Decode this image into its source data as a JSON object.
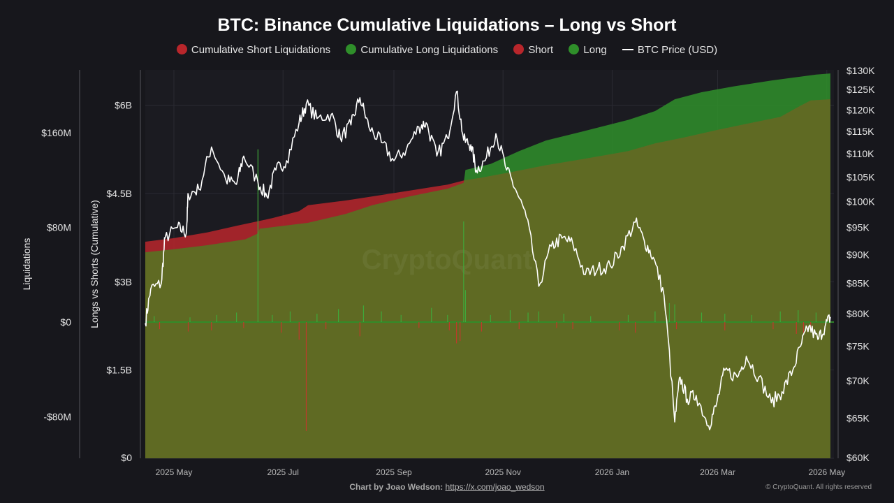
{
  "title": "BTC: Binance Cumulative Liquidations – Long vs Short",
  "legend": [
    {
      "label": "Cumulative Short Liquidations",
      "kind": "dot",
      "color": "#b8262b"
    },
    {
      "label": "Cumulative Long Liquidations",
      "kind": "dot",
      "color": "#2f8f2a"
    },
    {
      "label": "Short",
      "kind": "dot",
      "color": "#b8262b"
    },
    {
      "label": "Long",
      "kind": "dot",
      "color": "#2f8f2a"
    },
    {
      "label": "BTC Price (USD)",
      "kind": "line",
      "color": "#ffffff"
    }
  ],
  "footer": {
    "credit_prefix": "Chart by Joao Wedson:",
    "credit_link": "https://x.com/joao_wedson",
    "copyright": "© CryptoQuant. All rights reserved"
  },
  "colors": {
    "background": "#17171c",
    "plot_background": "#1b1b21",
    "short": "#b8262b",
    "long": "#2f8f2a",
    "overlap": "#5f6a23",
    "price_line": "#ffffff"
  },
  "chart_data": {
    "type": "area",
    "x_axis": {
      "type": "date",
      "range": [
        "2025-04-15",
        "2026-05-05"
      ],
      "ticks": [
        {
          "date": "2025-05-01",
          "label": "2025 May"
        },
        {
          "date": "2025-07-01",
          "label": "2025 Jul"
        },
        {
          "date": "2025-09-01",
          "label": "2025 Sep"
        },
        {
          "date": "2025-11-01",
          "label": "2025 Nov"
        },
        {
          "date": "2026-01-01",
          "label": "2026 Jan"
        },
        {
          "date": "2026-03-01",
          "label": "2026 Mar"
        },
        {
          "date": "2026-05-01",
          "label": "2026 May"
        }
      ]
    },
    "axes": {
      "liquidations": {
        "label": "Liquidations",
        "range": [
          -160000000,
          160000000
        ],
        "ticks": [
          {
            "value": 160000000,
            "label": "$160M"
          },
          {
            "value": 80000000,
            "label": "$80M"
          },
          {
            "value": 0,
            "label": "$0"
          },
          {
            "value": -80000000,
            "label": "-$80M"
          }
        ]
      },
      "cumulative": {
        "label": "Longs vs Shorts (Cumulative)",
        "range": [
          0,
          6600000000
        ],
        "ticks": [
          {
            "value": 6000000000,
            "label": "$6B"
          },
          {
            "value": 4500000000,
            "label": "$4.5B"
          },
          {
            "value": 3000000000,
            "label": "$3B"
          },
          {
            "value": 1500000000,
            "label": "$1.5B"
          },
          {
            "value": 0,
            "label": "$0"
          }
        ],
        "zero_label": "$0"
      },
      "price": {
        "label": "BTC Price (USD)",
        "scale": "log",
        "range": [
          60000,
          130000
        ],
        "ticks": [
          {
            "value": 130000,
            "label": "$130K"
          },
          {
            "value": 125000,
            "label": "$125K"
          },
          {
            "value": 120000,
            "label": "$120K"
          },
          {
            "value": 115000,
            "label": "$115K"
          },
          {
            "value": 110000,
            "label": "$110K"
          },
          {
            "value": 105000,
            "label": "$105K"
          },
          {
            "value": 100000,
            "label": "$100K"
          },
          {
            "value": 95000,
            "label": "$95K"
          },
          {
            "value": 90000,
            "label": "$90K"
          },
          {
            "value": 85000,
            "label": "$85K"
          },
          {
            "value": 80000,
            "label": "$80K"
          },
          {
            "value": 75000,
            "label": "$75K"
          },
          {
            "value": 70000,
            "label": "$70K"
          },
          {
            "value": 65000,
            "label": "$65K"
          },
          {
            "value": 60000,
            "label": "$60K"
          }
        ]
      }
    },
    "series": [
      {
        "name": "Cumulative Short Liquidations",
        "axis": "cumulative",
        "points": [
          [
            "2025-04-15",
            3680000000.0
          ],
          [
            "2025-05-01",
            3740000000.0
          ],
          [
            "2025-05-20",
            3840000000.0
          ],
          [
            "2025-06-05",
            3950000000.0
          ],
          [
            "2025-06-25",
            4080000000.0
          ],
          [
            "2025-07-10",
            4200000000.0
          ],
          [
            "2025-07-15",
            4300000000.0
          ],
          [
            "2025-08-05",
            4380000000.0
          ],
          [
            "2025-08-20",
            4450000000.0
          ],
          [
            "2025-09-10",
            4550000000.0
          ],
          [
            "2025-10-01",
            4650000000.0
          ],
          [
            "2025-10-10",
            4720000000.0
          ],
          [
            "2025-10-20",
            4770000000.0
          ],
          [
            "2025-11-05",
            4860000000.0
          ],
          [
            "2025-11-25",
            4980000000.0
          ],
          [
            "2025-12-15",
            5080000000.0
          ],
          [
            "2026-01-10",
            5220000000.0
          ],
          [
            "2026-01-25",
            5350000000.0
          ],
          [
            "2026-02-10",
            5450000000.0
          ],
          [
            "2026-03-01",
            5580000000.0
          ],
          [
            "2026-03-20",
            5700000000.0
          ],
          [
            "2026-04-05",
            5800000000.0
          ],
          [
            "2026-04-15",
            5970000000.0
          ],
          [
            "2026-04-22",
            6080000000.0
          ],
          [
            "2026-05-03",
            6100000000.0
          ]
        ]
      },
      {
        "name": "Cumulative Long Liquidations",
        "axis": "cumulative",
        "points": [
          [
            "2025-04-15",
            3500000000.0
          ],
          [
            "2025-05-01",
            3550000000.0
          ],
          [
            "2025-05-20",
            3620000000.0
          ],
          [
            "2025-06-10",
            3720000000.0
          ],
          [
            "2025-06-17",
            3820000000.0
          ],
          [
            "2025-06-18",
            3900000000.0
          ],
          [
            "2025-07-15",
            4000000000.0
          ],
          [
            "2025-08-05",
            4150000000.0
          ],
          [
            "2025-08-20",
            4300000000.0
          ],
          [
            "2025-09-10",
            4450000000.0
          ],
          [
            "2025-10-01",
            4580000000.0
          ],
          [
            "2025-10-10",
            4680000000.0
          ],
          [
            "2025-10-11",
            4900000000.0
          ],
          [
            "2025-10-25",
            5000000000.0
          ],
          [
            "2025-11-10",
            5220000000.0
          ],
          [
            "2025-11-25",
            5400000000.0
          ],
          [
            "2025-12-15",
            5550000000.0
          ],
          [
            "2026-01-10",
            5750000000.0
          ],
          [
            "2026-01-25",
            5900000000.0
          ],
          [
            "2026-02-05",
            6100000000.0
          ],
          [
            "2026-02-20",
            6220000000.0
          ],
          [
            "2026-03-10",
            6320000000.0
          ],
          [
            "2026-03-31",
            6420000000.0
          ],
          [
            "2026-04-15",
            6480000000.0
          ],
          [
            "2026-04-25",
            6520000000.0
          ],
          [
            "2026-05-03",
            6540000000.0
          ]
        ]
      },
      {
        "name": "Long",
        "axis": "liquidations",
        "values_usd_m": [
          [
            "2025-04-20",
            5
          ],
          [
            "2025-05-10",
            4
          ],
          [
            "2025-05-25",
            6
          ],
          [
            "2025-06-05",
            8
          ],
          [
            "2025-06-17",
            146
          ],
          [
            "2025-06-25",
            6
          ],
          [
            "2025-07-05",
            9
          ],
          [
            "2025-07-20",
            7
          ],
          [
            "2025-08-01",
            11
          ],
          [
            "2025-08-15",
            14
          ],
          [
            "2025-08-25",
            9
          ],
          [
            "2025-09-05",
            6
          ],
          [
            "2025-09-22",
            12
          ],
          [
            "2025-10-01",
            6
          ],
          [
            "2025-10-10",
            85
          ],
          [
            "2025-10-11",
            27
          ],
          [
            "2025-10-25",
            6
          ],
          [
            "2025-11-05",
            10
          ],
          [
            "2025-11-15",
            8
          ],
          [
            "2025-11-21",
            9
          ],
          [
            "2025-12-05",
            7
          ],
          [
            "2025-12-20",
            5
          ],
          [
            "2026-01-10",
            6
          ],
          [
            "2026-01-25",
            9
          ],
          [
            "2026-02-02",
            16
          ],
          [
            "2026-02-05",
            15
          ],
          [
            "2026-02-20",
            8
          ],
          [
            "2026-03-05",
            7
          ],
          [
            "2026-03-20",
            6
          ],
          [
            "2026-04-05",
            9
          ],
          [
            "2026-04-15",
            10
          ],
          [
            "2026-04-25",
            8
          ]
        ]
      },
      {
        "name": "Short",
        "axis": "liquidations",
        "values_usd_m": [
          [
            "2025-04-23",
            -6
          ],
          [
            "2025-05-09",
            -8
          ],
          [
            "2025-05-22",
            -7
          ],
          [
            "2025-06-09",
            -5
          ],
          [
            "2025-06-30",
            -9
          ],
          [
            "2025-07-10",
            -15
          ],
          [
            "2025-07-14",
            -92
          ],
          [
            "2025-07-25",
            -6
          ],
          [
            "2025-08-13",
            -12
          ],
          [
            "2025-09-15",
            -5
          ],
          [
            "2025-10-02",
            -7
          ],
          [
            "2025-10-06",
            -18
          ],
          [
            "2025-10-08",
            -16
          ],
          [
            "2025-10-20",
            -8
          ],
          [
            "2025-11-10",
            -6
          ],
          [
            "2025-12-01",
            -5
          ],
          [
            "2025-12-10",
            -6
          ],
          [
            "2026-01-05",
            -7
          ],
          [
            "2026-01-14",
            -9
          ],
          [
            "2026-02-06",
            -6
          ],
          [
            "2026-03-05",
            -7
          ],
          [
            "2026-04-01",
            -6
          ],
          [
            "2026-04-14",
            -10
          ],
          [
            "2026-04-18",
            -9
          ],
          [
            "2026-04-22",
            -7
          ]
        ]
      },
      {
        "name": "BTC Price (USD)",
        "axis": "price",
        "points": [
          [
            "2025-04-15",
            78500
          ],
          [
            "2025-04-18",
            84000
          ],
          [
            "2025-04-24",
            85000
          ],
          [
            "2025-04-26",
            93000
          ],
          [
            "2025-05-03",
            95000
          ],
          [
            "2025-05-08",
            94000
          ],
          [
            "2025-05-09",
            101500
          ],
          [
            "2025-05-15",
            102500
          ],
          [
            "2025-05-22",
            111500
          ],
          [
            "2025-05-30",
            104500
          ],
          [
            "2025-06-05",
            103500
          ],
          [
            "2025-06-09",
            109500
          ],
          [
            "2025-06-17",
            104000
          ],
          [
            "2025-06-22",
            101000
          ],
          [
            "2025-06-27",
            106500
          ],
          [
            "2025-07-03",
            108500
          ],
          [
            "2025-07-10",
            117000
          ],
          [
            "2025-07-14",
            121500
          ],
          [
            "2025-07-20",
            118000
          ],
          [
            "2025-07-28",
            119000
          ],
          [
            "2025-08-02",
            113500
          ],
          [
            "2025-08-08",
            116500
          ],
          [
            "2025-08-13",
            123000
          ],
          [
            "2025-08-18",
            116000
          ],
          [
            "2025-08-25",
            112500
          ],
          [
            "2025-09-01",
            108500
          ],
          [
            "2025-09-08",
            111000
          ],
          [
            "2025-09-15",
            116000
          ],
          [
            "2025-09-19",
            117000
          ],
          [
            "2025-09-25",
            109500
          ],
          [
            "2025-10-01",
            113500
          ],
          [
            "2025-10-06",
            124500
          ],
          [
            "2025-10-10",
            113000
          ],
          [
            "2025-10-14",
            112000
          ],
          [
            "2025-10-17",
            106500
          ],
          [
            "2025-10-22",
            108500
          ],
          [
            "2025-10-28",
            114500
          ],
          [
            "2025-11-03",
            106500
          ],
          [
            "2025-11-08",
            102500
          ],
          [
            "2025-11-14",
            97000
          ],
          [
            "2025-11-21",
            84500
          ],
          [
            "2025-11-28",
            91500
          ],
          [
            "2025-12-04",
            93000
          ],
          [
            "2025-12-10",
            92000
          ],
          [
            "2025-12-17",
            86500
          ],
          [
            "2025-12-24",
            87500
          ],
          [
            "2025-12-31",
            88000
          ],
          [
            "2026-01-07",
            91500
          ],
          [
            "2026-01-14",
            96000
          ],
          [
            "2026-01-19",
            92500
          ],
          [
            "2026-01-24",
            89500
          ],
          [
            "2026-01-30",
            83000
          ],
          [
            "2026-02-05",
            64500
          ],
          [
            "2026-02-08",
            70500
          ],
          [
            "2026-02-12",
            67500
          ],
          [
            "2026-02-17",
            68000
          ],
          [
            "2026-02-24",
            64000
          ],
          [
            "2026-02-28",
            66500
          ],
          [
            "2026-03-05",
            71500
          ],
          [
            "2026-03-12",
            70500
          ],
          [
            "2026-03-17",
            73500
          ],
          [
            "2026-03-24",
            70500
          ],
          [
            "2026-03-31",
            67000
          ],
          [
            "2026-04-06",
            68500
          ],
          [
            "2026-04-12",
            71500
          ],
          [
            "2026-04-17",
            75500
          ],
          [
            "2026-04-21",
            78000
          ],
          [
            "2026-04-26",
            76000
          ],
          [
            "2026-04-30",
            78000
          ],
          [
            "2026-05-03",
            79500
          ]
        ]
      }
    ],
    "grid": true,
    "watermark": "CryptoQuant"
  }
}
